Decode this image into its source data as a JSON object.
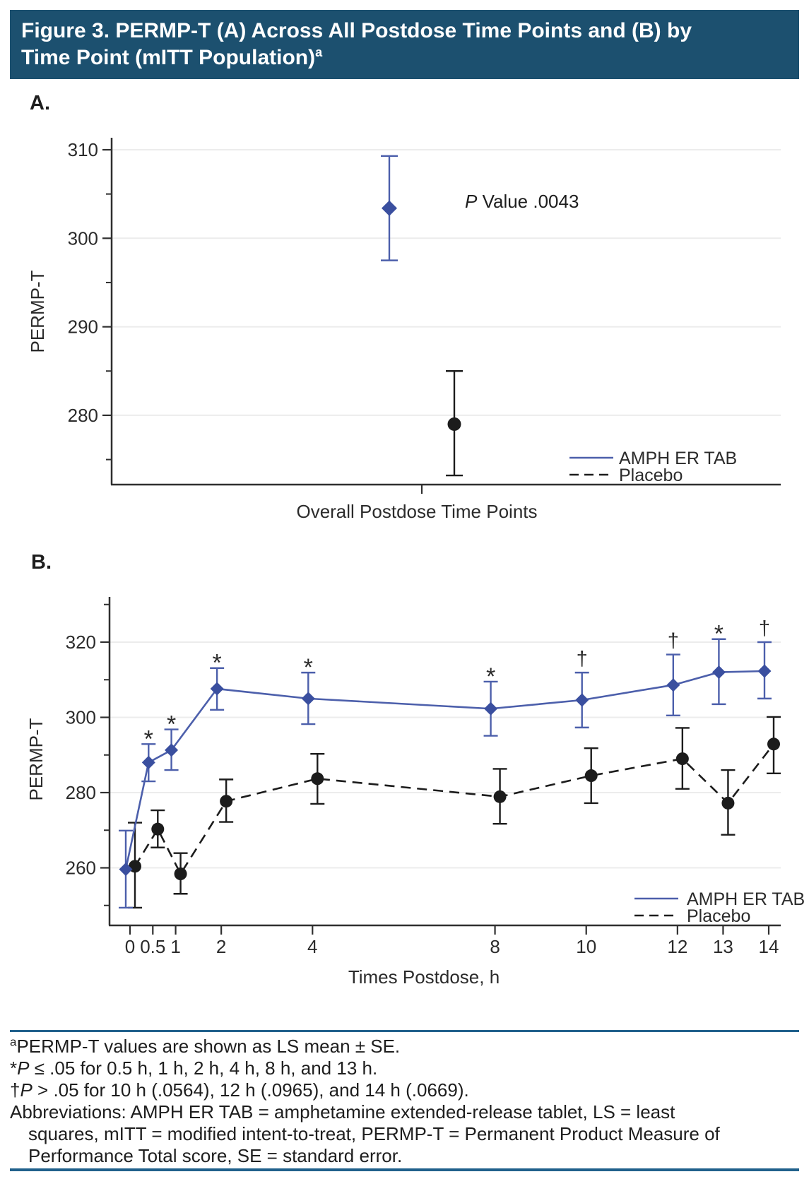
{
  "header": {
    "line1": "Figure 3. PERMP-T (A) Across All Postdose Time Points and (B) by",
    "line2": "Time Point (mITT Population)",
    "superscript": "a"
  },
  "panels": {
    "a_label": "A.",
    "b_label": "B."
  },
  "colors": {
    "header_bg": "#1c506f",
    "header_text": "#ffffff",
    "amph": "#3a4f9f",
    "amph_line": "#4c5fab",
    "placebo": "#1c1c1c",
    "grid": "#ececec",
    "axis": "#2f2f2f",
    "tick_text": "#2b2b2b",
    "divider": "#21618c"
  },
  "chart_data": [
    {
      "panel": "A",
      "type": "scatter",
      "ylabel": "PERMP-T",
      "xlabel": "Overall Postdose Time Points",
      "x_categories": [
        "Overall Postdose Time Points"
      ],
      "ylim": [
        272,
        312
      ],
      "yticks": [
        280,
        290,
        300,
        310
      ],
      "yticks_minor": [
        275,
        285,
        295,
        305
      ],
      "grid": true,
      "legend_position": "bottom-right",
      "annotation": {
        "p_italic": "P",
        "rest": " Value .0043"
      },
      "series": [
        {
          "name": "AMPH ER TAB",
          "marker": "diamond",
          "line_style": "solid",
          "points": [
            {
              "category": "Overall Postdose Time Points",
              "mean": 303.4,
              "lo": 297.5,
              "hi": 309.3
            }
          ]
        },
        {
          "name": "Placebo",
          "marker": "circle",
          "line_style": "dashed",
          "points": [
            {
              "category": "Overall Postdose Time Points",
              "mean": 279.0,
              "lo": 273.2,
              "hi": 285.0
            }
          ]
        }
      ]
    },
    {
      "panel": "B",
      "type": "line",
      "ylabel": "PERMP-T",
      "xlabel": "Times Postdose, h",
      "xticks": [
        0,
        0.5,
        1,
        2,
        4,
        8,
        10,
        12,
        13,
        14
      ],
      "ylim": [
        245,
        332
      ],
      "yticks": [
        260,
        280,
        300,
        320
      ],
      "yticks_minor": [
        250,
        270,
        290,
        310,
        330
      ],
      "grid": true,
      "legend_position": "bottom-right",
      "series": [
        {
          "name": "AMPH ER TAB",
          "marker": "diamond",
          "line_style": "solid",
          "x": [
            0,
            0.5,
            1,
            2,
            4,
            8,
            10,
            12,
            13,
            14
          ],
          "mean": [
            259.6,
            288.0,
            291.3,
            307.6,
            305.0,
            302.3,
            304.6,
            308.6,
            312.0,
            312.3
          ],
          "lo": [
            249.4,
            283.0,
            286.0,
            302.0,
            298.2,
            295.1,
            297.3,
            300.5,
            303.5,
            305.0
          ],
          "hi": [
            269.9,
            292.9,
            296.8,
            313.1,
            311.9,
            309.5,
            311.9,
            316.7,
            320.8,
            320.0
          ],
          "sig": [
            "",
            "*",
            "*",
            "*",
            "*",
            "*",
            "†",
            "†",
            "*",
            "†"
          ]
        },
        {
          "name": "Placebo",
          "marker": "circle",
          "line_style": "dashed",
          "x": [
            0,
            0.5,
            1,
            2,
            4,
            8,
            10,
            12,
            13,
            14
          ],
          "mean": [
            260.4,
            270.3,
            258.4,
            277.7,
            283.7,
            278.9,
            284.5,
            289.0,
            277.2,
            292.9
          ],
          "lo": [
            249.4,
            265.4,
            253.1,
            272.2,
            277.0,
            271.7,
            277.2,
            281.0,
            268.8,
            285.1
          ],
          "hi": [
            272.0,
            275.3,
            263.9,
            283.5,
            290.3,
            286.3,
            291.8,
            297.2,
            286.0,
            300.1
          ],
          "sig": [
            "",
            "",
            "",
            "",
            "",
            "",
            "",
            "",
            "",
            ""
          ]
        }
      ]
    }
  ],
  "footnotes": {
    "sup": "a",
    "line1": "PERMP-T values are shown as LS mean ± SE.",
    "line2_prefix": "*",
    "line2_p": "P",
    "line2": " ≤ .05 for 0.5 h, 1 h, 2 h, 4 h, 8 h, and 13 h.",
    "line3_prefix": "†",
    "line3_p": "P",
    "line3": " > .05 for 10 h (.0564), 12 h (.0965), and 14 h (.0669).",
    "abbrev_line1": "Abbreviations: AMPH ER TAB = amphetamine extended-release tablet, LS = least",
    "abbrev_line2": "squares, mITT = modified intent-to-treat, PERMP-T = Permanent Product Measure of",
    "abbrev_line3": "Performance Total score, SE = standard error."
  }
}
